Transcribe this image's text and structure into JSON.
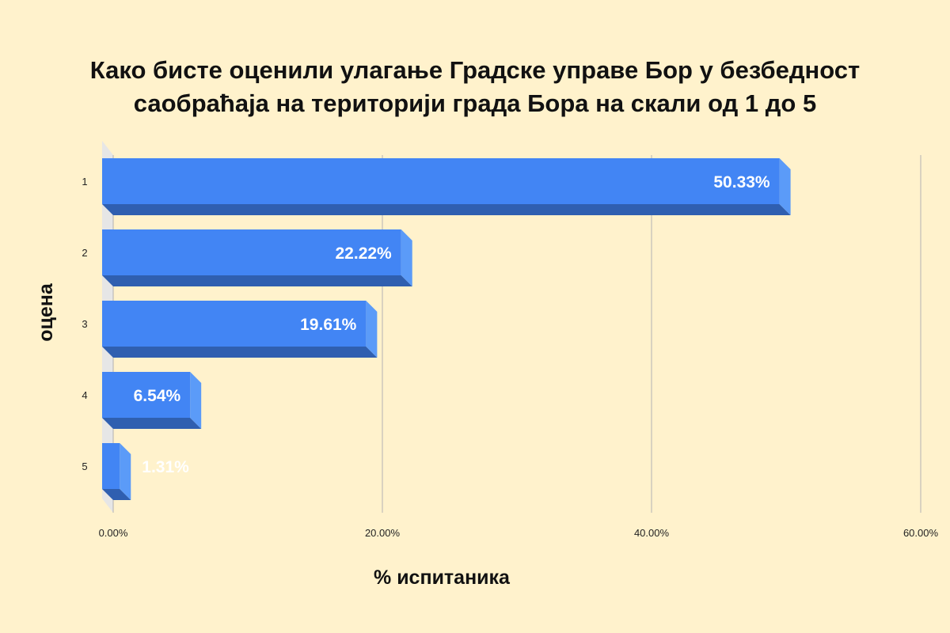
{
  "title_lines": [
    "Како бисте оценили улагање Градске управе Бор у безбедност",
    "саобраћаја на територији града Бора на скали од 1 до 5"
  ],
  "colors": {
    "background": "#fff2cc",
    "bar_front": "#4285f4",
    "bar_side": "#5b9bf8",
    "bar_bottom": "#2f5fb0",
    "grid": "#b3b3b3",
    "side_wall": "#e6e6e6"
  },
  "chart_data": {
    "type": "bar",
    "orientation": "horizontal",
    "style": "3d",
    "title": "Како бисте оценили улагање Градске управе Бор у безбедност саобраћаја на територији града Бора на скали од 1 до 5",
    "categories": [
      "1",
      "2",
      "3",
      "4",
      "5"
    ],
    "values": [
      50.33,
      22.22,
      19.61,
      6.54,
      1.31
    ],
    "data_labels": [
      "50.33%",
      "22.22%",
      "19.61%",
      "6.54%",
      "1.31%"
    ],
    "xlabel": "% испитаника",
    "ylabel": "оцена",
    "xlim": [
      0,
      60
    ],
    "x_ticks": [
      0,
      20,
      40,
      60
    ],
    "x_tick_labels": [
      "0.00%",
      "20.00%",
      "40.00%",
      "60.00%"
    ],
    "grid": true,
    "legend": "none"
  }
}
